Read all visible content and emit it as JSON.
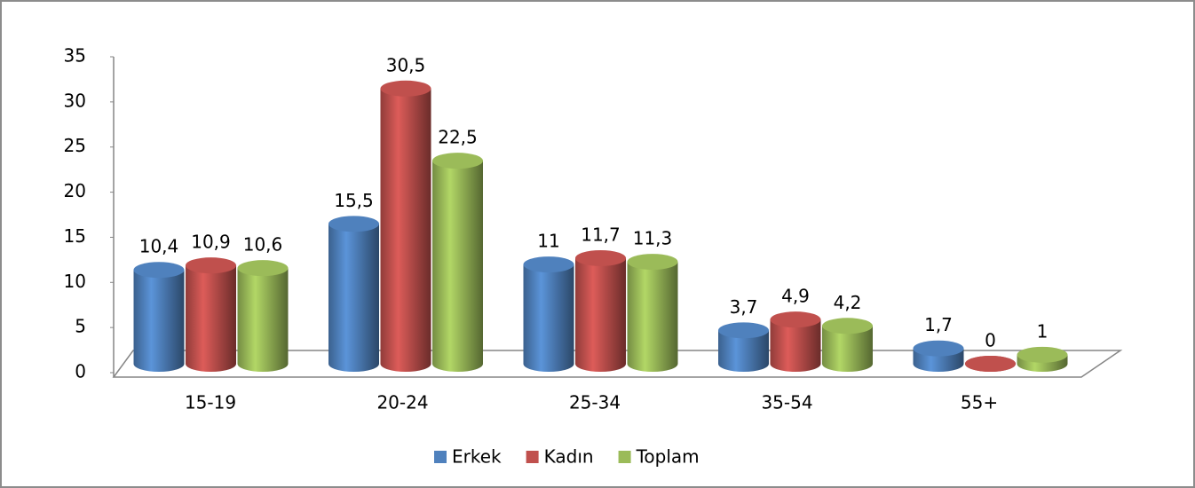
{
  "chart_data": {
    "type": "bar3d",
    "categories": [
      "15-19",
      "20-24",
      "25-34",
      "35-54",
      "55+"
    ],
    "series": [
      {
        "name": "Erkek",
        "color": "#4f81bd",
        "values": [
          10.4,
          15.5,
          11,
          3.7,
          1.7
        ],
        "value_labels": [
          "10,4",
          "15,5",
          "11",
          "3,7",
          "1,7"
        ]
      },
      {
        "name": "Kadın",
        "color": "#c0504d",
        "values": [
          10.9,
          30.5,
          11.7,
          4.9,
          0
        ],
        "value_labels": [
          "10,9",
          "30,5",
          "11,7",
          "4,9",
          "0"
        ]
      },
      {
        "name": "Toplam",
        "color": "#9bbb59",
        "values": [
          10.6,
          22.5,
          11.3,
          4.2,
          1
        ],
        "value_labels": [
          "10,6",
          "22,5",
          "11,3",
          "4,2",
          "1"
        ]
      }
    ],
    "ylim": [
      0,
      35
    ],
    "yticks": [
      0,
      5,
      10,
      15,
      20,
      25,
      30,
      35
    ],
    "legend": "bottom"
  }
}
